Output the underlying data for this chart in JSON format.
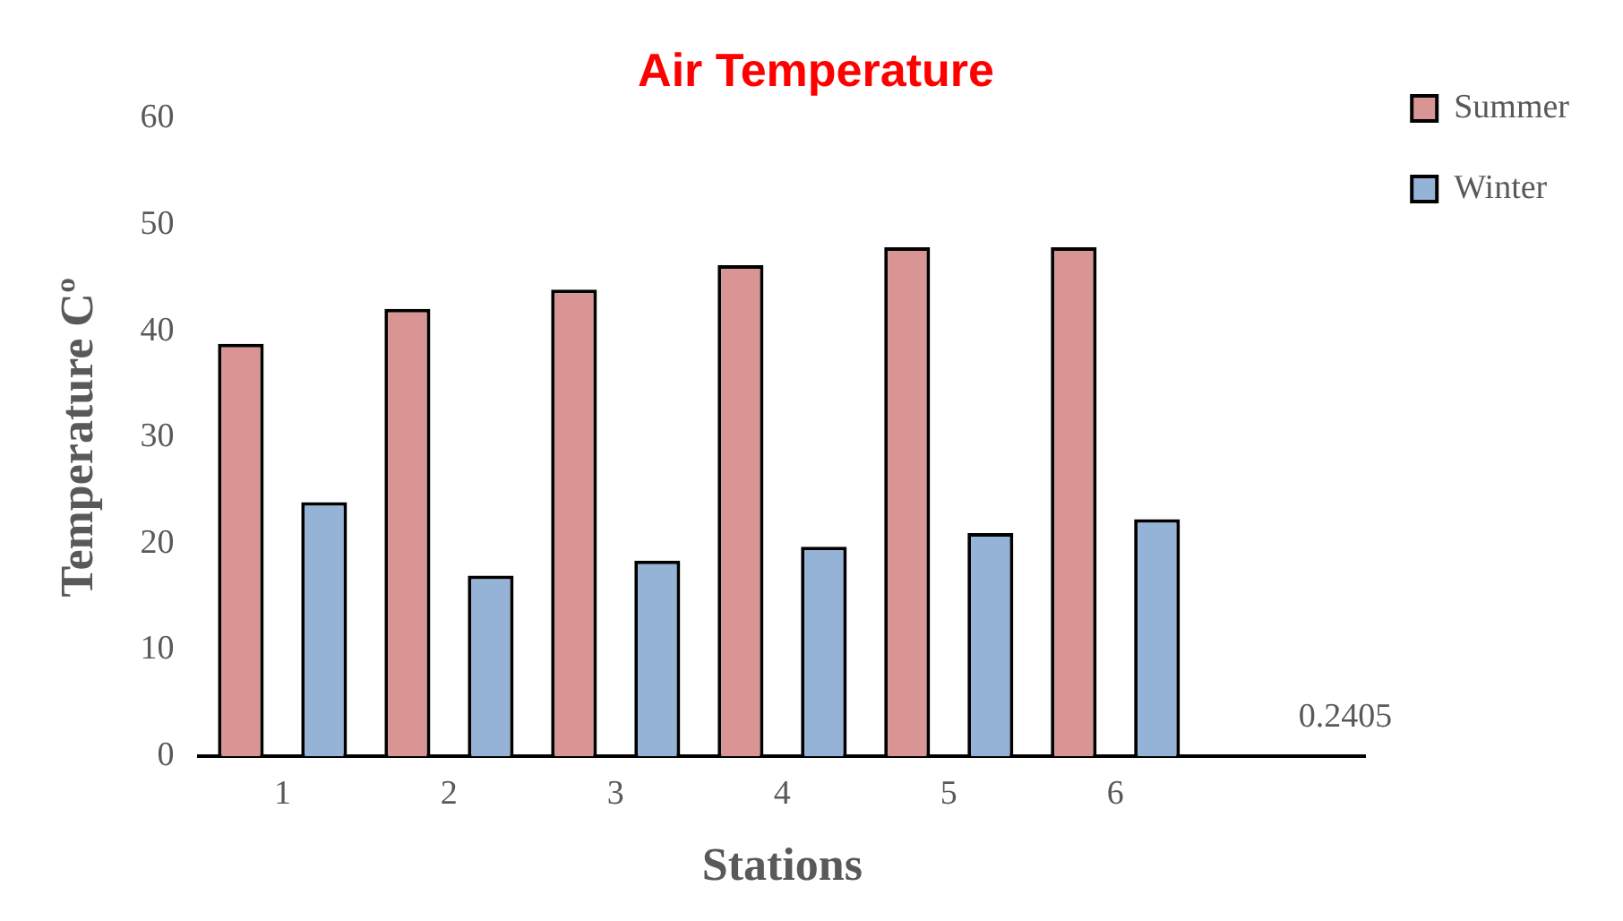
{
  "chart_data": {
    "type": "bar",
    "title": "Air Temperature",
    "xlabel": "Stations",
    "ylabel": "Temperature Cº",
    "categories": [
      "1",
      "2",
      "3",
      "4",
      "5",
      "6",
      null
    ],
    "series": [
      {
        "name": "Summer",
        "color": "#d99594",
        "values": [
          38.8,
          42.1,
          43.9,
          46.2,
          47.9,
          47.9,
          null
        ]
      },
      {
        "name": "Winter",
        "color": "#95b3d7",
        "values": [
          23.9,
          17.0,
          18.4,
          19.7,
          21.0,
          22.3,
          null
        ]
      }
    ],
    "ylim": [
      0,
      60
    ],
    "yticks": [
      0,
      10,
      20,
      30,
      40,
      50,
      60
    ],
    "grid": false,
    "legend": "top right",
    "annotations": [
      "0.2405"
    ]
  }
}
